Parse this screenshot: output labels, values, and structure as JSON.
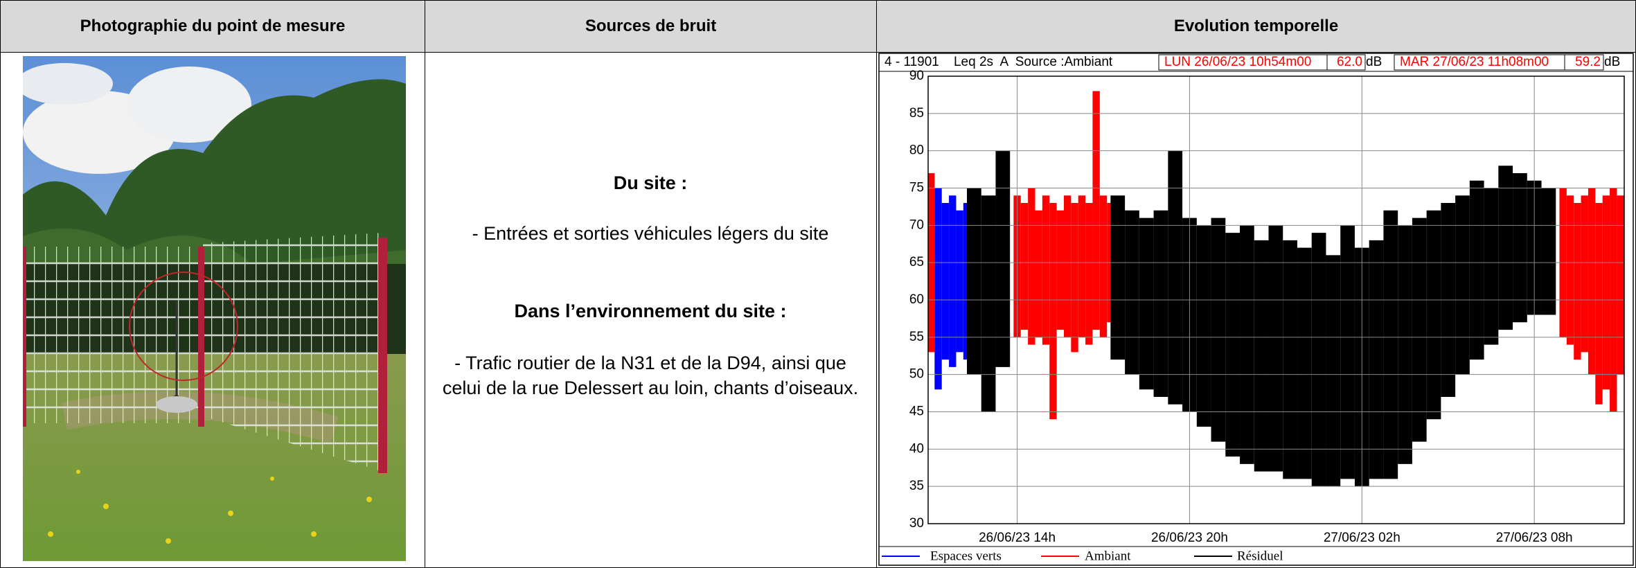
{
  "table": {
    "headers": [
      "Photographie du point de mesure",
      "Sources de bruit",
      "Evolution temporelle"
    ]
  },
  "sources": {
    "site_heading": "Du site :",
    "site_items": [
      "- Entrées et sorties véhicules légers du site"
    ],
    "environment_heading": "Dans l’environnement du site :",
    "environment_items": [
      "- Trafic routier de la N31 et de la D94, ainsi que celui de la rue Delessert au loin, chants d’oiseaux."
    ]
  },
  "chart_data": {
    "type": "range",
    "info": "4 - 11901    Leq 2s  A  Source :Ambiant",
    "start": "LUN 26/06/23 10h54m00",
    "start_level": "62.0",
    "end": "MAR 27/06/23 11h08m00",
    "end_level": "59.2",
    "unit": "dB",
    "xlim": [
      10.9,
      35.13
    ],
    "xticks": [
      {
        "value": 14,
        "label": "26/06/23 14h"
      },
      {
        "value": 20,
        "label": "26/06/23 20h"
      },
      {
        "value": 26,
        "label": "27/06/23 02h"
      },
      {
        "value": 32,
        "label": "27/06/23 08h"
      }
    ],
    "ylim": [
      30,
      90
    ],
    "yticks": [
      30,
      35,
      40,
      45,
      50,
      55,
      60,
      65,
      70,
      75,
      80,
      85,
      90
    ],
    "grid": true,
    "series": [
      {
        "name": "Espaces verts",
        "color": "#0000ff",
        "x": [
          11.25,
          11.5,
          11.75,
          12.0,
          12.25
        ],
        "max": [
          75,
          73,
          74,
          72,
          73
        ],
        "min": [
          48,
          52,
          51,
          53,
          52
        ]
      },
      {
        "name": "Ambiant",
        "color": "#ff0000",
        "x": [
          11.0,
          14.0,
          14.25,
          14.5,
          14.75,
          15.0,
          15.25,
          15.5,
          15.75,
          16.0,
          16.25,
          16.5,
          16.75,
          17.0,
          17.25,
          33.0,
          33.25,
          33.5,
          33.75,
          34.0,
          34.25,
          34.5,
          34.75,
          35.0
        ],
        "max": [
          77,
          74,
          73,
          75,
          72,
          74,
          73,
          72,
          74,
          73,
          74,
          73,
          88,
          74,
          73,
          75,
          74,
          73,
          74,
          75,
          73,
          74,
          75,
          74
        ],
        "min": [
          53,
          55,
          56,
          54,
          55,
          54,
          44,
          56,
          55,
          53,
          55,
          54,
          56,
          55,
          57,
          55,
          54,
          52,
          53,
          50,
          46,
          48,
          45,
          50
        ]
      },
      {
        "name": "Résiduel",
        "color": "#000000",
        "x": [
          12.5,
          13.0,
          13.5,
          17.5,
          18,
          18.5,
          19,
          19.5,
          20,
          20.5,
          21,
          21.5,
          22,
          22.5,
          23,
          23.5,
          24,
          24.5,
          25,
          25.5,
          26,
          26.5,
          27,
          27.5,
          28,
          28.5,
          29,
          29.5,
          30,
          30.5,
          31,
          31.5,
          32,
          32.5
        ],
        "max": [
          75,
          74,
          80,
          74,
          72,
          71,
          72,
          80,
          71,
          70,
          71,
          69,
          70,
          68,
          70,
          68,
          67,
          69,
          66,
          70,
          67,
          68,
          72,
          70,
          71,
          72,
          73,
          74,
          76,
          75,
          78,
          77,
          76,
          75
        ],
        "min": [
          50,
          45,
          51,
          52,
          50,
          48,
          47,
          46,
          45,
          43,
          41,
          39,
          38,
          37,
          37,
          36,
          36,
          35,
          35,
          36,
          35,
          36,
          36,
          38,
          41,
          44,
          47,
          50,
          52,
          54,
          56,
          57,
          58,
          58
        ]
      }
    ]
  }
}
